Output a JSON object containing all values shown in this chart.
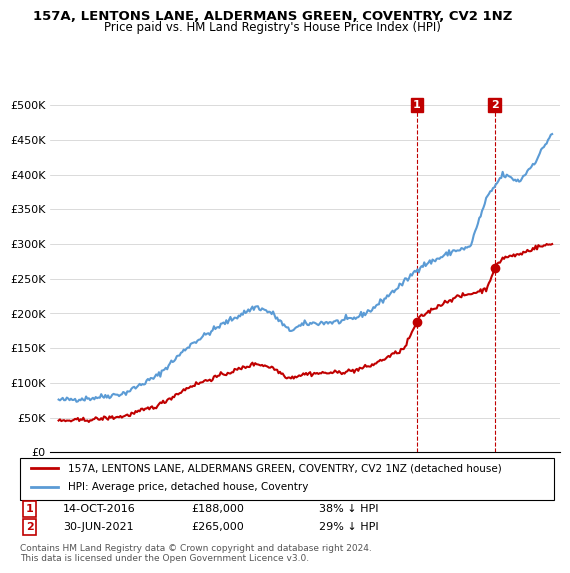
{
  "title": "157A, LENTONS LANE, ALDERMANS GREEN, COVENTRY, CV2 1NZ",
  "subtitle": "Price paid vs. HM Land Registry's House Price Index (HPI)",
  "red_line_label": "157A, LENTONS LANE, ALDERMANS GREEN, COVENTRY, CV2 1NZ (detached house)",
  "blue_line_label": "HPI: Average price, detached house, Coventry",
  "annotation1": {
    "num": "1",
    "date": "14-OCT-2016",
    "price": "£188,000",
    "pct": "38% ↓ HPI"
  },
  "annotation2": {
    "num": "2",
    "date": "30-JUN-2021",
    "price": "£265,000",
    "pct": "29% ↓ HPI"
  },
  "footer": "Contains HM Land Registry data © Crown copyright and database right 2024.\nThis data is licensed under the Open Government Licence v3.0.",
  "ylim": [
    0,
    500000
  ],
  "yticks": [
    0,
    50000,
    100000,
    150000,
    200000,
    250000,
    300000,
    350000,
    400000,
    450000,
    500000
  ],
  "hpi_color": "#5b9bd5",
  "price_color": "#c00000",
  "dashed_color": "#c00000",
  "marker_color": "#c00000",
  "background_color": "#ffffff"
}
